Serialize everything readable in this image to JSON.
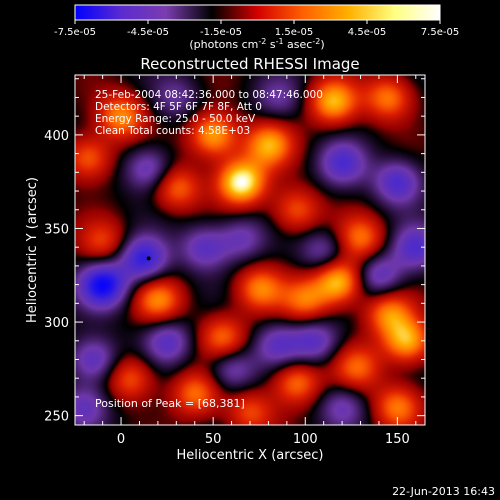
{
  "chart_data": {
    "type": "heatmap",
    "title": "Reconstructed RHESSI Image",
    "xlabel": "Heliocentric X (arcsec)",
    "ylabel": "Heliocentric Y (arcsec)",
    "xlim": [
      -25,
      165
    ],
    "ylim": [
      245,
      432
    ],
    "x_ticks": [
      0,
      50,
      100,
      150
    ],
    "y_ticks": [
      250,
      300,
      350,
      400
    ],
    "colorbar": {
      "min": -7.5e-05,
      "max": 7.5e-05,
      "ticks": [
        "-7.5e-05",
        "-4.5e-05",
        "-1.5e-05",
        "1.5e-05",
        "4.5e-05",
        "7.5e-05"
      ],
      "label_prefix": "(photons cm",
      "label_sup1": "-2",
      "label_mid": " s",
      "label_sup2": "-1",
      "label_mid2": " asec",
      "label_sup3": "-2",
      "label_suffix": ")",
      "colors": [
        "#0000ff",
        "#5a2ad0",
        "#7a3db0",
        "#000000",
        "#d40000",
        "#ff6000",
        "#ffb000",
        "#ffff80",
        "#ffffff"
      ]
    },
    "info_lines": [
      "25-Feb-2004 08:42:36.000 to 08:47:46.000",
      "Detectors: 4F 5F 6F 7F 8F, Att 0",
      "Energy Range: 25.0 - 50.0 keV",
      "Clean     Total counts: 4.58E+03"
    ],
    "peak_label": "Position of Peak = [68,381]",
    "peak": [
      68,
      381
    ],
    "marker_point": [
      15,
      334
    ],
    "bright_blobs": [
      {
        "x": 65,
        "y": 375,
        "v": 1.0
      },
      {
        "x": 50,
        "y": 400,
        "v": 0.75
      },
      {
        "x": 80,
        "y": 395,
        "v": 0.7
      },
      {
        "x": 115,
        "y": 418,
        "v": 0.75
      },
      {
        "x": 145,
        "y": 420,
        "v": 0.6
      },
      {
        "x": 0,
        "y": 410,
        "v": 0.65
      },
      {
        "x": -18,
        "y": 388,
        "v": 0.55
      },
      {
        "x": 30,
        "y": 372,
        "v": 0.55
      },
      {
        "x": 95,
        "y": 360,
        "v": 0.5
      },
      {
        "x": 130,
        "y": 345,
        "v": 0.55
      },
      {
        "x": 118,
        "y": 322,
        "v": 0.85
      },
      {
        "x": 100,
        "y": 312,
        "v": 0.55
      },
      {
        "x": 75,
        "y": 318,
        "v": 0.6
      },
      {
        "x": 20,
        "y": 312,
        "v": 0.6
      },
      {
        "x": -10,
        "y": 343,
        "v": 0.4
      },
      {
        "x": 145,
        "y": 305,
        "v": 0.6
      },
      {
        "x": 55,
        "y": 292,
        "v": 0.55
      },
      {
        "x": 155,
        "y": 290,
        "v": 0.75
      },
      {
        "x": 5,
        "y": 270,
        "v": 0.5
      },
      {
        "x": 40,
        "y": 262,
        "v": 0.55
      },
      {
        "x": 95,
        "y": 268,
        "v": 0.6
      },
      {
        "x": 150,
        "y": 255,
        "v": 0.6
      },
      {
        "x": 128,
        "y": 276,
        "v": 0.5
      },
      {
        "x": 70,
        "y": 252,
        "v": 0.45
      }
    ],
    "dark_blobs": [
      {
        "x": -10,
        "y": 320,
        "v": -0.9
      },
      {
        "x": 12,
        "y": 334,
        "v": -0.75
      },
      {
        "x": 15,
        "y": 382,
        "v": -0.5
      },
      {
        "x": 150,
        "y": 375,
        "v": -0.6
      },
      {
        "x": 120,
        "y": 385,
        "v": -0.55
      },
      {
        "x": 45,
        "y": 340,
        "v": -0.5
      },
      {
        "x": 65,
        "y": 345,
        "v": -0.4
      },
      {
        "x": 105,
        "y": 290,
        "v": -0.5
      },
      {
        "x": 85,
        "y": 288,
        "v": -0.45
      },
      {
        "x": 140,
        "y": 325,
        "v": -0.5
      },
      {
        "x": 110,
        "y": 338,
        "v": -0.4
      },
      {
        "x": -15,
        "y": 280,
        "v": -0.55
      },
      {
        "x": 25,
        "y": 290,
        "v": -0.5
      },
      {
        "x": 60,
        "y": 275,
        "v": -0.45
      },
      {
        "x": 160,
        "y": 340,
        "v": -0.55
      },
      {
        "x": 120,
        "y": 255,
        "v": -0.4
      },
      {
        "x": -20,
        "y": 255,
        "v": -0.45
      },
      {
        "x": 85,
        "y": 420,
        "v": -0.3
      },
      {
        "x": 30,
        "y": 420,
        "v": -0.3
      }
    ]
  },
  "footer_timestamp": "22-Jun-2013 16:43"
}
